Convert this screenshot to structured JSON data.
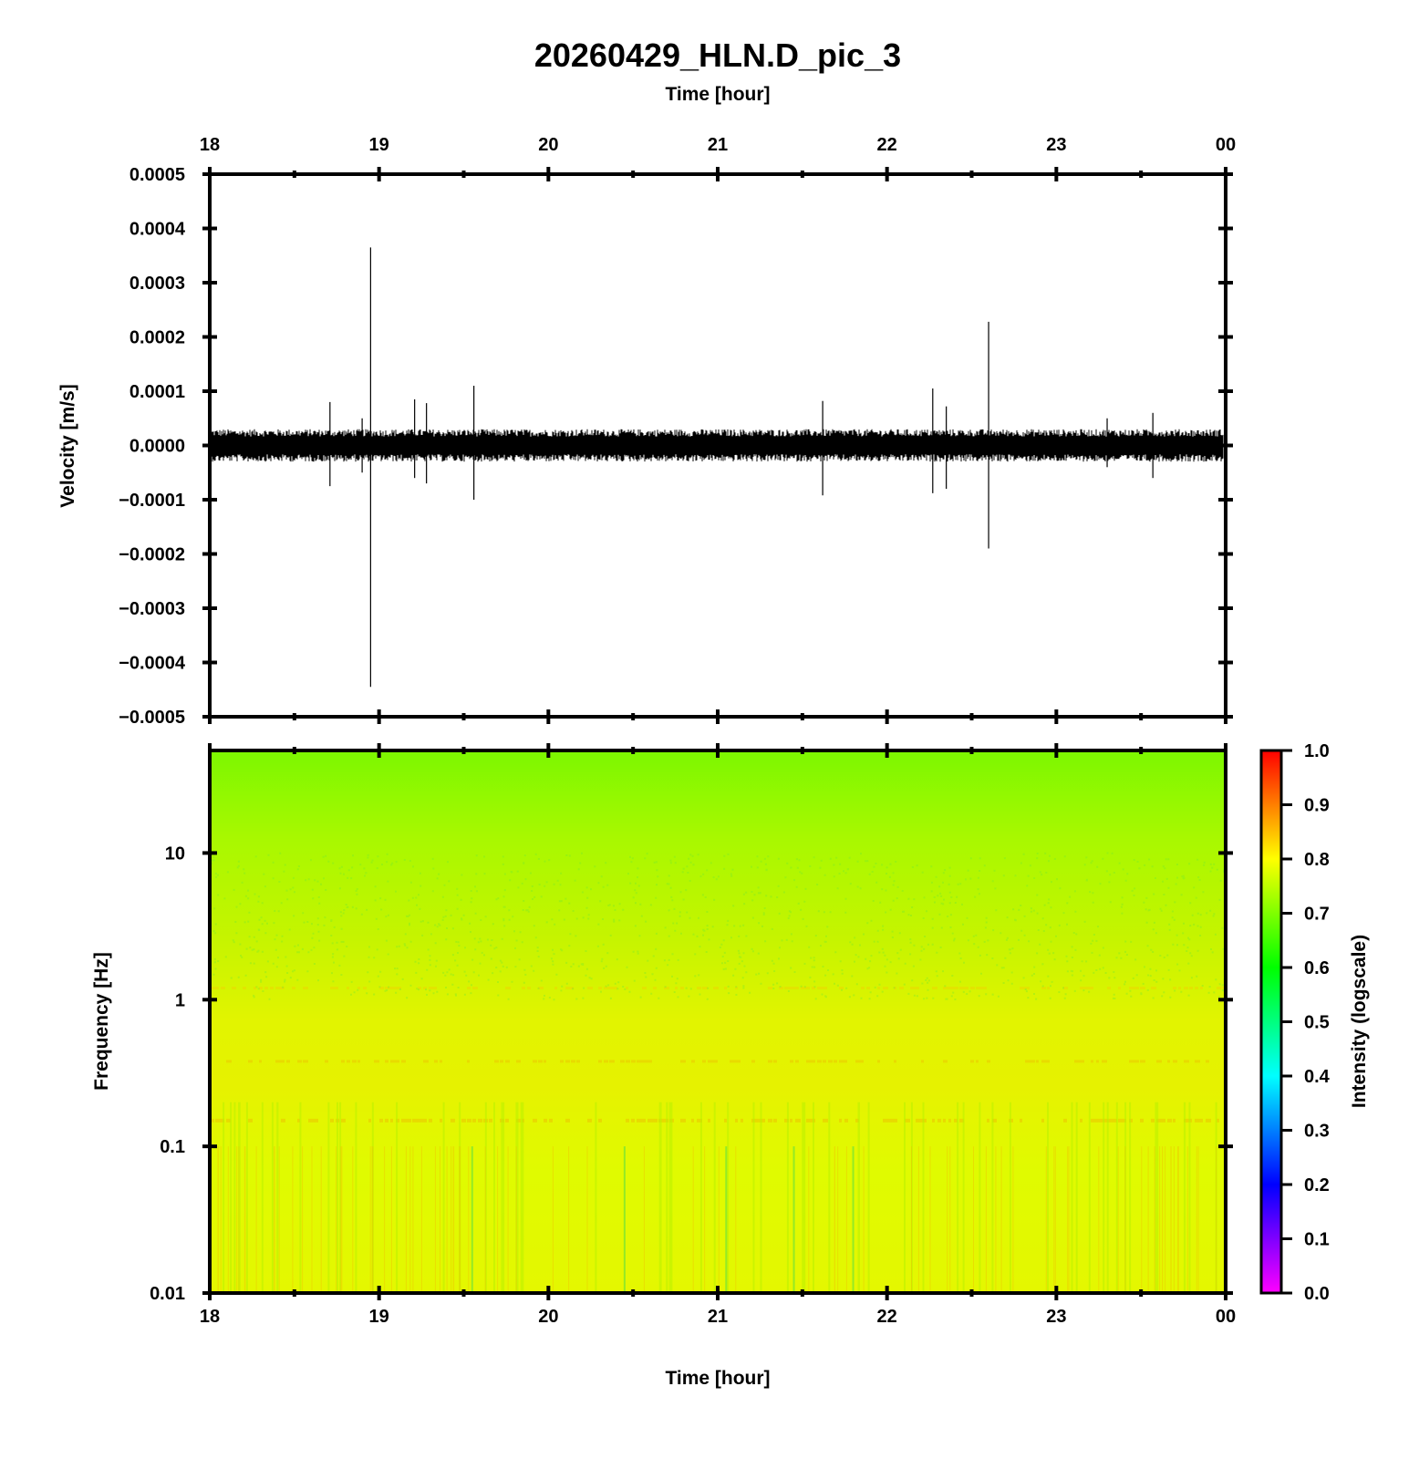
{
  "title": "20260429_HLN.D_pic_3",
  "colors": {
    "frame": "#000000",
    "trace": "#000000",
    "colormap": [
      "#ff00ff",
      "#7f00ff",
      "#0000ff",
      "#007fff",
      "#00ffff",
      "#00ff7f",
      "#00ff00",
      "#7fff00",
      "#ffff00",
      "#ff7f00",
      "#ff0000"
    ]
  },
  "chart_data": [
    {
      "type": "line",
      "name": "waveform",
      "xlabel_top": "Time [hour]",
      "xlabel": "",
      "ylabel": "Velocity [m/s]",
      "x_ticks": [
        "18",
        "19",
        "20",
        "21",
        "22",
        "23",
        "00"
      ],
      "xlim": [
        18,
        24
      ],
      "ylim": [
        -0.0005,
        0.0005
      ],
      "y_ticks": [
        "0.0005",
        "0.0004",
        "0.0003",
        "0.0002",
        "0.0001",
        "0.0000",
        "−0.0001",
        "−0.0002",
        "−0.0003",
        "−0.0004",
        "−0.0005"
      ],
      "y_tick_values": [
        0.0005,
        0.0004,
        0.0003,
        0.0002,
        0.0001,
        0.0,
        -0.0001,
        -0.0002,
        -0.0003,
        -0.0004,
        -0.0005
      ],
      "noise_band": [
        -3e-05,
        3e-05
      ],
      "spikes": [
        {
          "x": 18.71,
          "ymax": 8e-05,
          "ymin": -7.5e-05
        },
        {
          "x": 18.9,
          "ymax": 5e-05,
          "ymin": -5e-05
        },
        {
          "x": 18.95,
          "ymax": 0.000365,
          "ymin": -0.000445
        },
        {
          "x": 19.21,
          "ymax": 8.5e-05,
          "ymin": -6e-05
        },
        {
          "x": 19.28,
          "ymax": 7.8e-05,
          "ymin": -7e-05
        },
        {
          "x": 19.56,
          "ymax": 0.00011,
          "ymin": -0.0001
        },
        {
          "x": 21.62,
          "ymax": 8.2e-05,
          "ymin": -9.2e-05
        },
        {
          "x": 22.27,
          "ymax": 0.000105,
          "ymin": -8.8e-05
        },
        {
          "x": 22.35,
          "ymax": 7.2e-05,
          "ymin": -8e-05
        },
        {
          "x": 22.6,
          "ymax": 0.000228,
          "ymin": -0.00019
        },
        {
          "x": 23.3,
          "ymax": 5e-05,
          "ymin": -4e-05
        },
        {
          "x": 23.57,
          "ymax": 6e-05,
          "ymin": -6e-05
        }
      ]
    },
    {
      "type": "heatmap",
      "name": "spectrogram",
      "xlabel": "Time [hour]",
      "ylabel": "Frequency [Hz]",
      "x_ticks": [
        "18",
        "19",
        "20",
        "21",
        "22",
        "23",
        "00"
      ],
      "xlim": [
        18,
        24
      ],
      "y_scale": "log",
      "ylim": [
        0.01,
        50
      ],
      "y_ticks": [
        "10",
        "1",
        "0.1",
        "0.01"
      ],
      "y_tick_values": [
        10,
        1,
        0.1,
        0.01
      ],
      "colorbar": {
        "label": "Intensity (logscale)",
        "range": [
          0,
          1
        ],
        "ticks": [
          "1.0",
          "0.9",
          "0.8",
          "0.7",
          "0.6",
          "0.5",
          "0.4",
          "0.3",
          "0.2",
          "0.1",
          "0.0"
        ],
        "tick_values": [
          1.0,
          0.9,
          0.8,
          0.7,
          0.6,
          0.5,
          0.4,
          0.3,
          0.2,
          0.1,
          0.0
        ]
      },
      "intensity_profile": [
        {
          "freq": 50,
          "intensity": 0.65
        },
        {
          "freq": 10,
          "intensity": 0.7
        },
        {
          "freq": 3,
          "intensity": 0.73
        },
        {
          "freq": 1,
          "intensity": 0.77
        },
        {
          "freq": 0.3,
          "intensity": 0.79
        },
        {
          "freq": 0.1,
          "intensity": 0.78
        },
        {
          "freq": 0.01,
          "intensity": 0.77
        }
      ]
    }
  ]
}
